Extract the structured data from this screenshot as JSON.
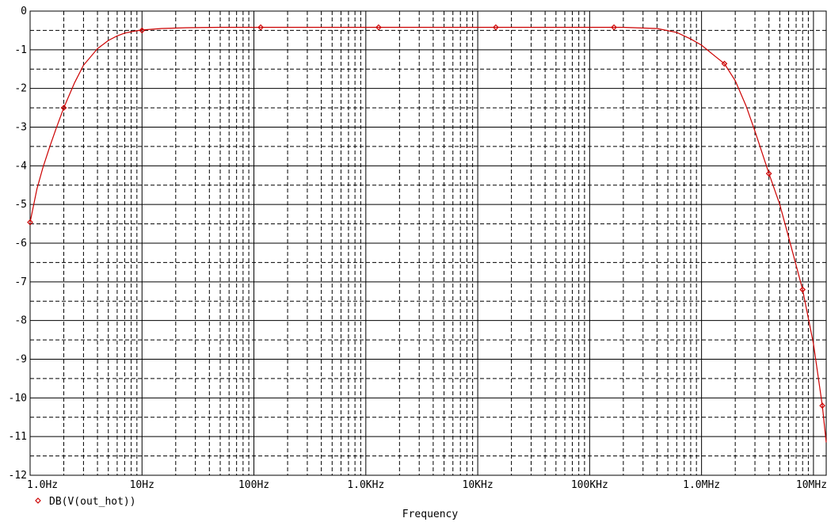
{
  "chart_data": {
    "type": "line",
    "xlabel": "Frequency",
    "ylabel": "",
    "x_scale": "log",
    "xlim": [
      1,
      13000000
    ],
    "ylim": [
      -12,
      0
    ],
    "x_ticks": [
      {
        "value": 1,
        "label": "1.0Hz"
      },
      {
        "value": 10,
        "label": "10Hz"
      },
      {
        "value": 100,
        "label": "100Hz"
      },
      {
        "value": 1000,
        "label": "1.0KHz"
      },
      {
        "value": 10000,
        "label": "10KHz"
      },
      {
        "value": 100000,
        "label": "100KHz"
      },
      {
        "value": 1000000,
        "label": "1.0MHz"
      },
      {
        "value": 10000000,
        "label": "10MHz"
      }
    ],
    "y_ticks": [
      0,
      -1,
      -2,
      -3,
      -4,
      -5,
      -6,
      -7,
      -8,
      -9,
      -10,
      -11,
      -12
    ],
    "grid": true,
    "legend_position": "bottom-left",
    "series": [
      {
        "name": "DB(V(out_hot))",
        "color": "#cc0000",
        "marker": "diamond",
        "points": [
          {
            "x": 1.0,
            "y": -5.46
          },
          {
            "x": 1.15,
            "y": -4.6
          },
          {
            "x": 1.3,
            "y": -4.05
          },
          {
            "x": 1.5,
            "y": -3.5
          },
          {
            "x": 1.7,
            "y": -3.05
          },
          {
            "x": 2.0,
            "y": -2.5
          },
          {
            "x": 2.5,
            "y": -1.85
          },
          {
            "x": 3.0,
            "y": -1.4
          },
          {
            "x": 4.0,
            "y": -0.97
          },
          {
            "x": 5.0,
            "y": -0.76
          },
          {
            "x": 6.0,
            "y": -0.64
          },
          {
            "x": 7.0,
            "y": -0.57
          },
          {
            "x": 8.5,
            "y": -0.52
          },
          {
            "x": 10.0,
            "y": -0.49
          },
          {
            "x": 15.0,
            "y": -0.45
          },
          {
            "x": 25.0,
            "y": -0.43
          },
          {
            "x": 50.0,
            "y": -0.42
          },
          {
            "x": 100.0,
            "y": -0.42
          },
          {
            "x": 200000.0,
            "y": -0.42
          },
          {
            "x": 400000.0,
            "y": -0.45
          },
          {
            "x": 600000.0,
            "y": -0.55
          },
          {
            "x": 800000.0,
            "y": -0.72
          },
          {
            "x": 1000000.0,
            "y": -0.88
          },
          {
            "x": 1300000.0,
            "y": -1.15
          },
          {
            "x": 1600000.0,
            "y": -1.36
          },
          {
            "x": 2000000.0,
            "y": -1.8
          },
          {
            "x": 2500000.0,
            "y": -2.45
          },
          {
            "x": 3000000.0,
            "y": -3.1
          },
          {
            "x": 4000000.0,
            "y": -4.2
          },
          {
            "x": 5000000.0,
            "y": -5.0
          },
          {
            "x": 6000000.0,
            "y": -5.85
          },
          {
            "x": 8000000.0,
            "y": -7.2
          },
          {
            "x": 10000000.0,
            "y": -8.6
          },
          {
            "x": 12000000.0,
            "y": -10.2
          },
          {
            "x": 13000000.0,
            "y": -11.15
          }
        ],
        "markers": [
          {
            "x": 1.0,
            "y": -5.46
          },
          {
            "x": 2.0,
            "y": -2.5
          },
          {
            "x": 10.0,
            "y": -0.5
          },
          {
            "x": 115.0,
            "y": -0.42
          },
          {
            "x": 1300.0,
            "y": -0.42
          },
          {
            "x": 14500.0,
            "y": -0.42
          },
          {
            "x": 165000.0,
            "y": -0.42
          },
          {
            "x": 1600000.0,
            "y": -1.36
          },
          {
            "x": 4000000.0,
            "y": -4.2
          },
          {
            "x": 8000000.0,
            "y": -7.2
          },
          {
            "x": 12000000.0,
            "y": -10.2
          }
        ]
      }
    ]
  }
}
